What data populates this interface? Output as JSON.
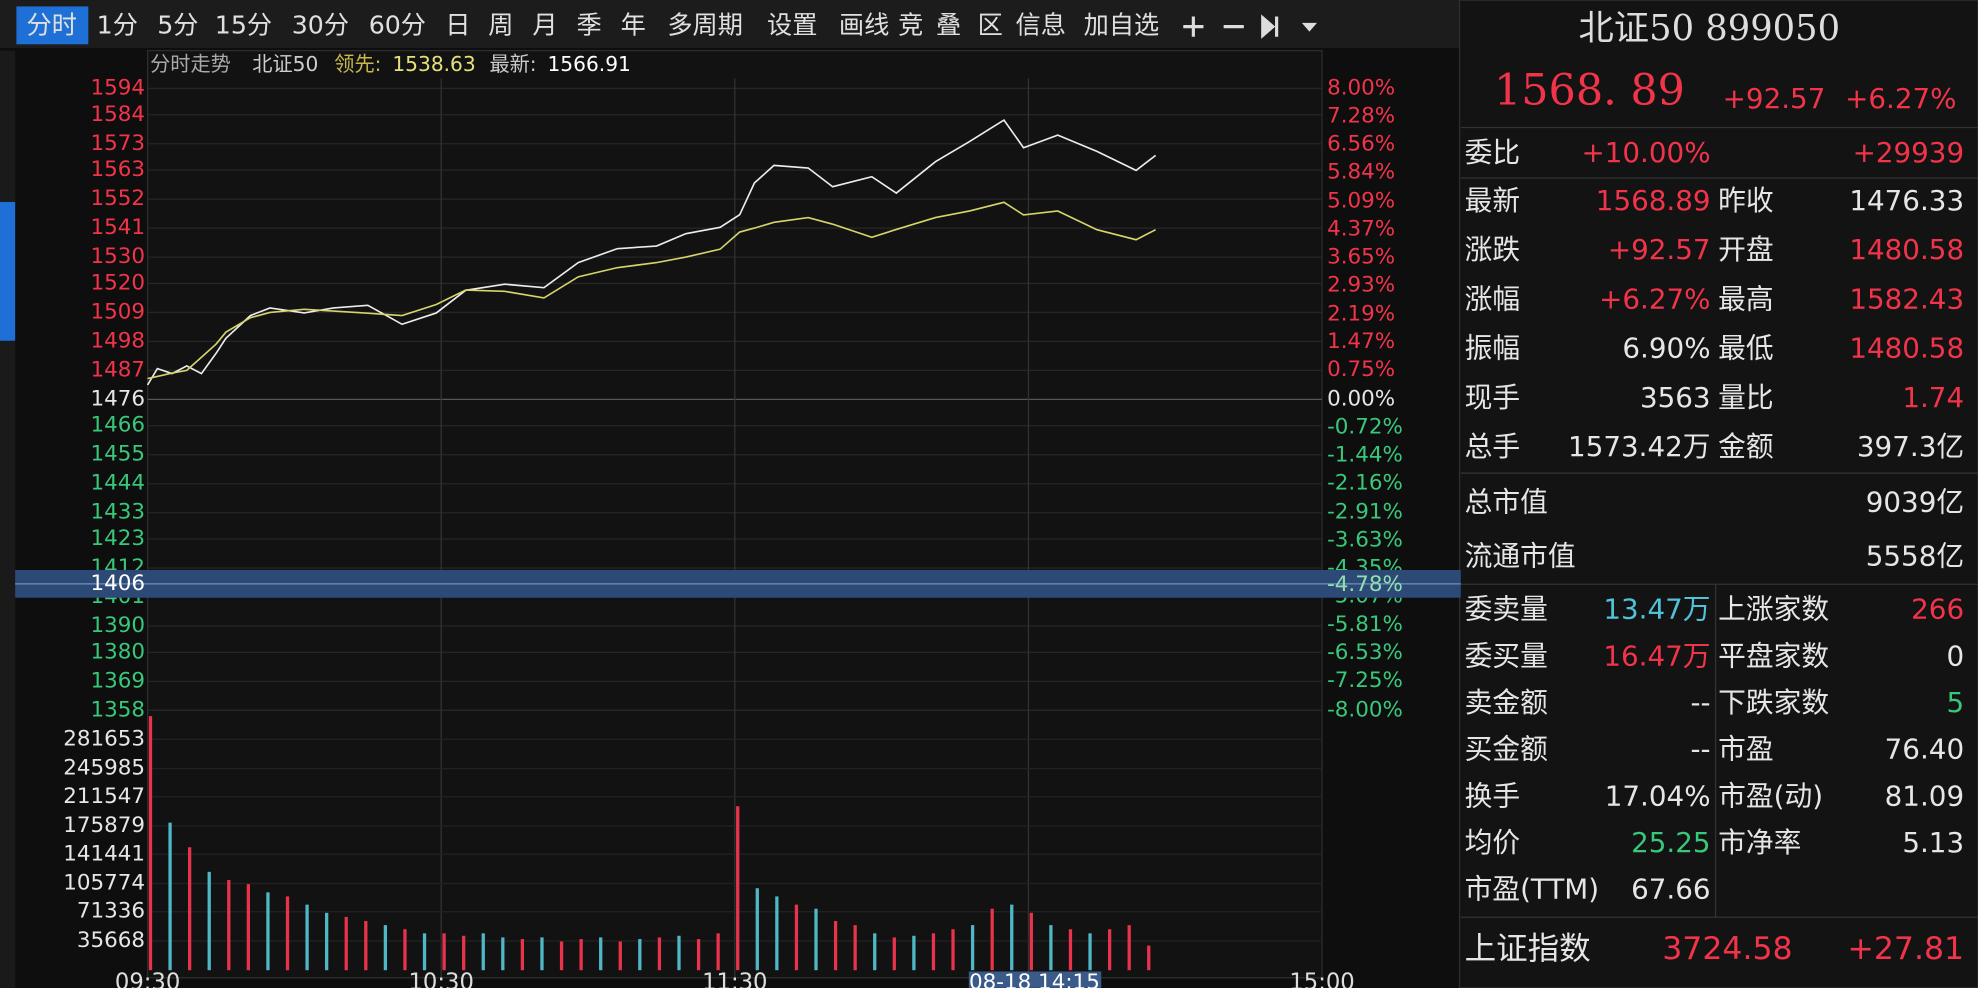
{
  "toolbar": [
    "分时",
    "1分",
    "5分",
    "15分",
    "30分",
    "60分",
    "日",
    "周",
    "月",
    "季",
    "年",
    "多周期",
    "设置",
    "画线",
    "竞",
    "叠",
    "区",
    "信息",
    "加自选"
  ],
  "chart_header": {
    "title": "分时走势",
    "name": "北证50",
    "leader_label": "领先:",
    "leader_value": "1538.63",
    "latest_label": "最新:",
    "latest_value": "1566.91"
  },
  "chart_data": [
    {
      "type": "line",
      "x": [
        0,
        2,
        5,
        8,
        11,
        14,
        16,
        21,
        25,
        32,
        38,
        45,
        52,
        59,
        65,
        73,
        81,
        88,
        96,
        104,
        110,
        117,
        121,
        124,
        128,
        135,
        140,
        148,
        153,
        161,
        168,
        175,
        179,
        186,
        194,
        202,
        206
      ],
      "xlim": [
        0,
        240
      ],
      "xticks": [
        {
          "value": 0,
          "label": "09:30"
        },
        {
          "value": 60,
          "label": "10:30"
        },
        {
          "value": 120,
          "label": "11:30"
        },
        {
          "value": 240,
          "label": "15:00"
        }
      ],
      "xgrid": [
        60,
        120,
        180
      ],
      "series": [
        {
          "color": "#ececec",
          "values": [
            1481.5,
            1487.7,
            1485.8,
            1488.7,
            1485.8,
            1493.5,
            1499.2,
            1507.8,
            1510.7,
            1508.8,
            1510.7,
            1511.7,
            1504.5,
            1508.8,
            1517.4,
            1519.7,
            1518.4,
            1527.9,
            1533.2,
            1534.2,
            1538.9,
            1541.3,
            1546.1,
            1558.1,
            1564.8,
            1563.8,
            1556.7,
            1560.5,
            1554.3,
            1566.2,
            1573.9,
            1582.0,
            1571.5,
            1576.3,
            1570.1,
            1562.9,
            1568.6
          ]
        },
        {
          "color": "#d6d46a",
          "values": [
            1483.9,
            1484.7,
            1486,
            1487,
            1492,
            1497,
            1501.5,
            1507,
            1509,
            1510.2,
            1509.5,
            1508.7,
            1507.8,
            1512,
            1517.5,
            1517,
            1514.5,
            1522.5,
            1526,
            1527.9,
            1530,
            1533,
            1539.5,
            1541,
            1543.2,
            1545,
            1542.5,
            1537.5,
            1540.5,
            1545,
            1547.5,
            1550.8,
            1546,
            1547.5,
            1540.4,
            1536.6,
            1540.4
          ]
        }
      ],
      "ylim": [
        1358,
        1594
      ],
      "yticks": [
        1594,
        1584,
        1573,
        1563,
        1552,
        1541,
        1530,
        1520,
        1509,
        1498,
        1487,
        1476,
        1466,
        1455,
        1444,
        1433,
        1423,
        1412,
        1401,
        1390,
        1380,
        1369,
        1358
      ],
      "y2lim": [
        -8,
        8
      ],
      "y2ticks": [
        {
          "value": 8,
          "label": "8.00%"
        },
        {
          "value": 7.28,
          "label": "7.28%"
        },
        {
          "value": 6.56,
          "label": "6.56%"
        },
        {
          "value": 5.84,
          "label": "5.84%"
        },
        {
          "value": 5.09,
          "label": "5.09%"
        },
        {
          "value": 4.37,
          "label": "4.37%"
        },
        {
          "value": 3.65,
          "label": "3.65%"
        },
        {
          "value": 2.93,
          "label": "2.93%"
        },
        {
          "value": 2.19,
          "label": "2.19%"
        },
        {
          "value": 1.47,
          "label": "1.47%"
        },
        {
          "value": 0.75,
          "label": "0.75%"
        },
        {
          "value": 0,
          "label": "0.00%"
        },
        {
          "value": -0.72,
          "label": "-0.72%"
        },
        {
          "value": -1.44,
          "label": "-1.44%"
        },
        {
          "value": -2.16,
          "label": "-2.16%"
        },
        {
          "value": -2.91,
          "label": "-2.91%"
        },
        {
          "value": -3.63,
          "label": "-3.63%"
        },
        {
          "value": -4.35,
          "label": "-4.35%"
        },
        {
          "value": -5.07,
          "label": "-5.07%"
        },
        {
          "value": -5.81,
          "label": "-5.81%"
        },
        {
          "value": -6.53,
          "label": "-6.53%"
        },
        {
          "value": -7.25,
          "label": "-7.25%"
        },
        {
          "value": -8,
          "label": "-8.00%"
        }
      ],
      "grid": true,
      "crosshair": {
        "price": 1406,
        "pct": {
          "value": -4.78,
          "label": "-4.78%"
        },
        "time": "08-18 14:15"
      }
    },
    {
      "type": "bar",
      "x": [
        0,
        4,
        8,
        12,
        16,
        20,
        24,
        28,
        32,
        36,
        40,
        44,
        48,
        52,
        56,
        60,
        64,
        68,
        72,
        76,
        80,
        84,
        88,
        92,
        96,
        100,
        104,
        108,
        112,
        116,
        120,
        124,
        128,
        132,
        136,
        140,
        144,
        148,
        152,
        156,
        160,
        164,
        168,
        172,
        176,
        180,
        184,
        188,
        192,
        196,
        200,
        204
      ],
      "values": [
        310000,
        180000,
        150000,
        120000,
        110000,
        105000,
        95000,
        90000,
        80000,
        70000,
        65000,
        60000,
        55000,
        50000,
        45000,
        45000,
        42000,
        45000,
        40000,
        38000,
        40000,
        35000,
        38000,
        40000,
        35000,
        38000,
        40000,
        42000,
        38000,
        45000,
        200000,
        100000,
        90000,
        80000,
        75000,
        60000,
        55000,
        45000,
        40000,
        42000,
        45000,
        50000,
        55000,
        75000,
        80000,
        70000,
        55000,
        50000,
        45000,
        50000,
        55000,
        30000
      ],
      "colors": [
        "#e8334a",
        "#4fb8c6",
        "#e8334a",
        "#4fb8c6",
        "#e8334a",
        "#e8334a",
        "#4fb8c6",
        "#e8334a",
        "#4fb8c6",
        "#4fb8c6",
        "#e8334a",
        "#e8334a",
        "#4fb8c6",
        "#e8334a",
        "#4fb8c6",
        "#e8334a",
        "#e8334a",
        "#4fb8c6",
        "#4fb8c6",
        "#e8334a",
        "#4fb8c6",
        "#e8334a",
        "#e8334a",
        "#4fb8c6",
        "#e8334a",
        "#4fb8c6",
        "#e8334a",
        "#4fb8c6",
        "#e8334a",
        "#e8334a",
        "#e8334a",
        "#4fb8c6",
        "#4fb8c6",
        "#e8334a",
        "#4fb8c6",
        "#e8334a",
        "#e8334a",
        "#4fb8c6",
        "#e8334a",
        "#4fb8c6",
        "#e8334a",
        "#e8334a",
        "#4fb8c6",
        "#e8334a",
        "#4fb8c6",
        "#e8334a",
        "#4fb8c6",
        "#e8334a",
        "#4fb8c6",
        "#e8334a",
        "#e8334a",
        "#e8334a"
      ],
      "xlim": [
        0,
        240
      ],
      "ylim": [
        0,
        317000
      ],
      "yticks": [
        281653,
        245985,
        211547,
        175879,
        141441,
        105774,
        71336,
        35668
      ]
    }
  ],
  "quote": {
    "title": "北证50 899050",
    "price": "1568. 89",
    "change": "+92.57",
    "change_pct": "+6.27%",
    "weibi": [
      "委比",
      "+10.00%",
      "+29939"
    ],
    "rows": [
      [
        "最新",
        "1568.89",
        "昨收",
        "1476.33"
      ],
      [
        "涨跌",
        "+92.57",
        "开盘",
        "1480.58"
      ],
      [
        "涨幅",
        "+6.27%",
        "最高",
        "1582.43"
      ],
      [
        "振幅",
        "6.90%",
        "最低",
        "1480.58"
      ],
      [
        "现手",
        "3563",
        "量比",
        "1.74"
      ],
      [
        "总手",
        "1573.42万",
        "金额",
        "397.3亿"
      ]
    ],
    "market_value": [
      [
        "总市值",
        "9039亿"
      ],
      [
        "流通市值",
        "5558亿"
      ]
    ],
    "rows2": [
      [
        "委卖量",
        "13.47万",
        "上涨家数",
        "266"
      ],
      [
        "委买量",
        "16.47万",
        "平盘家数",
        "0"
      ],
      [
        "卖金额",
        "--",
        "下跌家数",
        "5"
      ],
      [
        "买金额",
        "--",
        "市盈",
        "76.40"
      ],
      [
        "换手",
        "17.04%",
        "市盈(动)",
        "81.09"
      ],
      [
        "均价",
        "25.25",
        "市净率",
        "5.13"
      ],
      [
        "市盈(TTM)",
        "67.66"
      ]
    ],
    "index": [
      "上证指数",
      "3724.58",
      "+27.81"
    ]
  }
}
